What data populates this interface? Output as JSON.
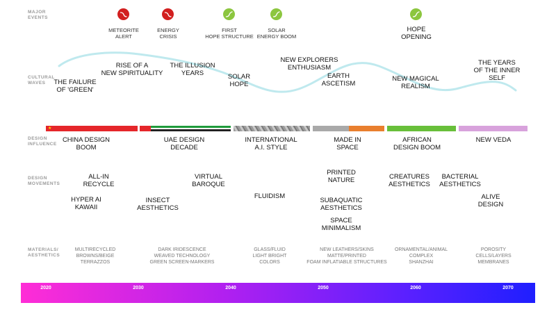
{
  "rows": {
    "major_events": "MAJOR\nEVENTS",
    "cultural_waves": "CULTURAL\nWAVES",
    "design_influence": "DESIGN\nINFLUENCE",
    "design_movements": "DESIGN\nMOVEMENTS",
    "materials": "MATERIALS/\nAESTHETICS"
  },
  "colors": {
    "alert": "#d21f1f",
    "hope": "#8cc63f",
    "wave": "#bfe9ee"
  },
  "events": [
    {
      "label": "METEORITE\nALERT",
      "kind": "alert",
      "icon": "trend-down-icon"
    },
    {
      "label": "ENERGY\nCRISIS",
      "kind": "alert",
      "icon": "trend-down-icon"
    },
    {
      "label": "FIRST\nHOPE STRUCTURE",
      "kind": "hope",
      "icon": "trend-up-icon"
    },
    {
      "label": "SOLAR\nENERGY BOOM",
      "kind": "hope",
      "icon": "trend-up-icon"
    },
    {
      "label": "HOPE\nOPENING",
      "kind": "hope",
      "icon": "trend-up-icon"
    }
  ],
  "waves": [
    "THE FAILURE\nOF 'GREEN'",
    "RISE OF A\nNEW SPIRITUALITY",
    "THE ILLUSION\nYEARS",
    "SOLAR\nHOPE",
    "NEW EXPLORERS\nENTHUSIASM",
    "EARTH\nASCETISM",
    "NEW MAGICAL\nREALISM",
    "THE YEARS\nOF THE INNER SELF"
  ],
  "influences": [
    {
      "label": "CHINA DESIGN\nBOOM"
    },
    {
      "label": "UAE DESIGN\nDECADE"
    },
    {
      "label": "INTERNATIONAL\nA.I. STYLE"
    },
    {
      "label": "MADE IN\nSPACE"
    },
    {
      "label": "AFRICAN\nDESIGN BOOM"
    },
    {
      "label": "NEW VEDA"
    }
  ],
  "movements": [
    "ALL-IN\nRECYCLE",
    "HYPER AI\nKAWAII",
    "INSECT\nAESTHETICS",
    "VIRTUAL\nBAROQUE",
    "FLUIDISM",
    "PRINTED\nNATURE",
    "SUBAQUATIC\nAESTHETICS",
    "SPACE\nMINIMALISM",
    "CREATURES\nAESTHETICS",
    "BACTERIAL\nAESTHETICS",
    "ALIVE\nDESIGN"
  ],
  "materials": [
    "MULTIRECYCLED\nBROWNS/BEIGE\nTERRAZZOS",
    "DARK IRIDESCENCE\nWEAVED TECHNOLOGY\nGREEN SCREEN-MARKERS",
    "GLASS/FLUID\nLIGHT BRIGHT\nCOLORS",
    "NEW LEATHERS/SKINS\nMATTE/PRINTED\nFOAM INFLATIABLE STRUCTURES",
    "ORNAMENTAL/ANIMAL\nCOMPLEX\nSHANZHAI",
    "POROSITY\nCELLS/LAYERS\nMEMBRANES"
  ],
  "years": [
    "2020",
    "2030",
    "2040",
    "2050",
    "2060",
    "2070"
  ]
}
